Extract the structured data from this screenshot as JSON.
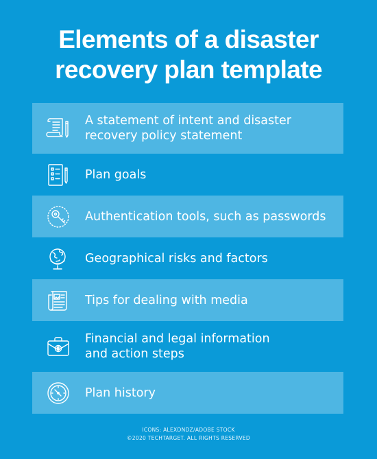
{
  "title": {
    "line1": "Elements of a disaster",
    "line2": "recovery plan template"
  },
  "items": [
    {
      "label_lines": [
        "A statement of intent and disaster",
        "recovery policy statement"
      ],
      "icon": "document-pen-icon"
    },
    {
      "label_lines": [
        "Plan goals"
      ],
      "icon": "checklist-pencil-icon"
    },
    {
      "label_lines": [
        "Authentication tools, such as passwords"
      ],
      "icon": "key-icon"
    },
    {
      "label_lines": [
        "Geographical risks and factors"
      ],
      "icon": "globe-icon"
    },
    {
      "label_lines": [
        "Tips for dealing with media"
      ],
      "icon": "newspaper-icon"
    },
    {
      "label_lines": [
        "Financial and legal information",
        "and action steps"
      ],
      "icon": "briefcase-dollar-icon"
    },
    {
      "label_lines": [
        "Plan history"
      ],
      "icon": "clock-icon"
    }
  ],
  "credits": {
    "icons": "ICONS: ALEXDNDZ/ADOBE STOCK",
    "copyright": "©2020 TECHTARGET. ALL RIGHTS RESERVED"
  },
  "colors": {
    "background": "#0a9ad8",
    "row_shade": "#4fb5e3",
    "text": "#ffffff"
  }
}
